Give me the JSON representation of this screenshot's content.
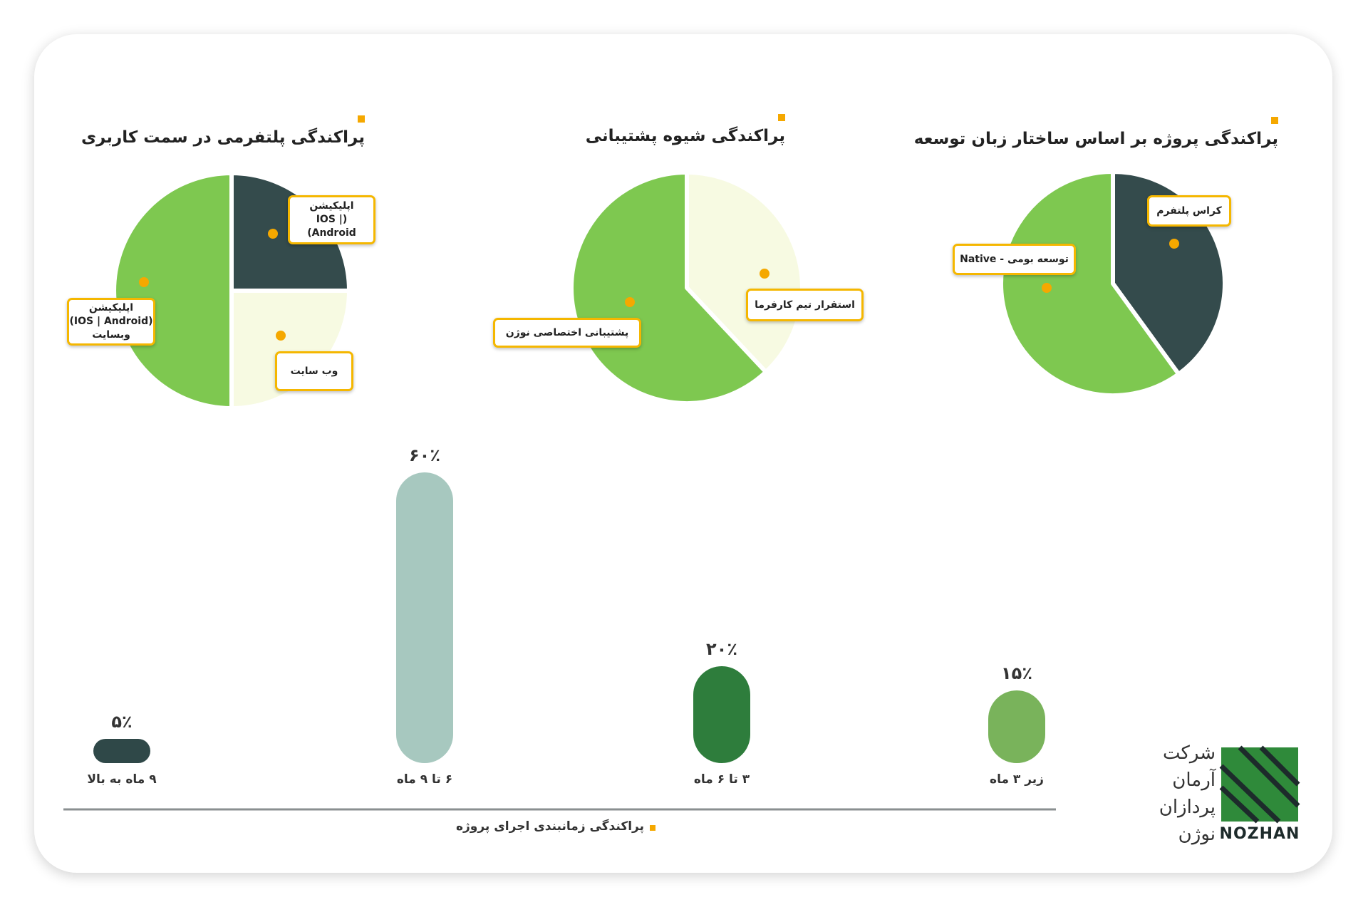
{
  "chart_data": [
    {
      "type": "pie",
      "title": "پراکندگی پلتفرمی در سمت کاربری",
      "categories": [
        "اپلیکیشن\n(IOS | Android)",
        "وب سایت",
        "اپلیکیشن\n(IOS | Android)\nوبسایت"
      ],
      "values": [
        25,
        25,
        50
      ],
      "colors": [
        "#344b4c",
        "#f7fae2",
        "#7ec850"
      ]
    },
    {
      "type": "pie",
      "title": "پراکندگی شیوه پشتیبانی",
      "categories": [
        "استقرار تیم کارفرما",
        "پشتیبانی اختصاصی نوژن"
      ],
      "values": [
        38,
        62
      ],
      "colors": [
        "#f7fae2",
        "#7ec850"
      ]
    },
    {
      "type": "pie",
      "title": "پراکندگی پروژه بر اساس ساختار زبان توسعه",
      "categories": [
        "کراس پلتفرم",
        "توسعه بومی - Native"
      ],
      "values": [
        40,
        60
      ],
      "colors": [
        "#344b4c",
        "#7ec850"
      ]
    },
    {
      "type": "bar",
      "title": "پراکندگی زمانبندی اجرای پروژه",
      "categories": [
        "۹ ماه به بالا",
        "۶ تا ۹ ماه",
        "۳ تا ۶ ماه",
        "زیر ۳ ماه"
      ],
      "values": [
        5,
        60,
        20,
        15
      ],
      "value_labels": [
        "۵٪",
        "۶۰٪",
        "۲۰٪",
        "۱۵٪"
      ],
      "colors": [
        "#2f4848",
        "#a7c8bf",
        "#2e7d3c",
        "#79b35b"
      ]
    }
  ],
  "logo": {
    "lines": [
      "شرکت",
      "آرمان",
      "پردازان",
      "نوژن"
    ],
    "brand": "NOZHAN"
  }
}
